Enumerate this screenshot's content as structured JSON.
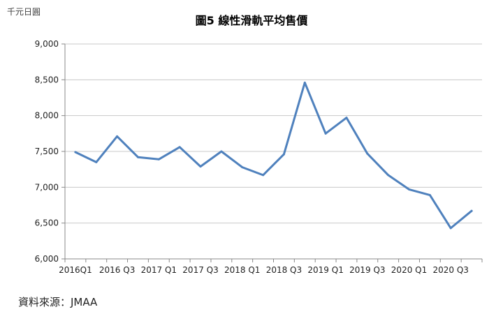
{
  "unit_label": "千元日圓",
  "source_note": "資料來源：JMAA",
  "chart_data": {
    "type": "line",
    "title": "圖5 線性滑軌平均售價",
    "xlabel": "",
    "ylabel": "",
    "ylim": [
      6000,
      9000
    ],
    "yticks": [
      6000,
      6500,
      7000,
      7500,
      8000,
      8500,
      9000
    ],
    "y_tick_labels": [
      "6,000",
      "6,500",
      "7,000",
      "7,500",
      "8,000",
      "8,500",
      "9,000"
    ],
    "x": [
      "2016Q1",
      "2016 Q2",
      "2016 Q3",
      "2016 Q4",
      "2017 Q1",
      "2017 Q2",
      "2017 Q3",
      "2017 Q4",
      "2018 Q1",
      "2018 Q2",
      "2018 Q3",
      "2018 Q4",
      "2019 Q1",
      "2019 Q2",
      "2019 Q3",
      "2019 Q4",
      "2020 Q1",
      "2020 Q2",
      "2020 Q3",
      "2020 Q4"
    ],
    "x_tick_labels": [
      "2016Q1",
      "2016 Q3",
      "2017 Q1",
      "2017 Q3",
      "2018 Q1",
      "2018 Q3",
      "2019 Q1",
      "2019 Q3",
      "2020 Q1",
      "2020 Q3"
    ],
    "series": [
      {
        "values": [
          7490,
          7350,
          7710,
          7420,
          7390,
          7560,
          7290,
          7500,
          7280,
          7170,
          7460,
          8460,
          7750,
          7970,
          7470,
          7170,
          6970,
          6890,
          6430,
          6670
        ],
        "color": "#4f81bd"
      }
    ],
    "grid": true,
    "legend": "none"
  }
}
